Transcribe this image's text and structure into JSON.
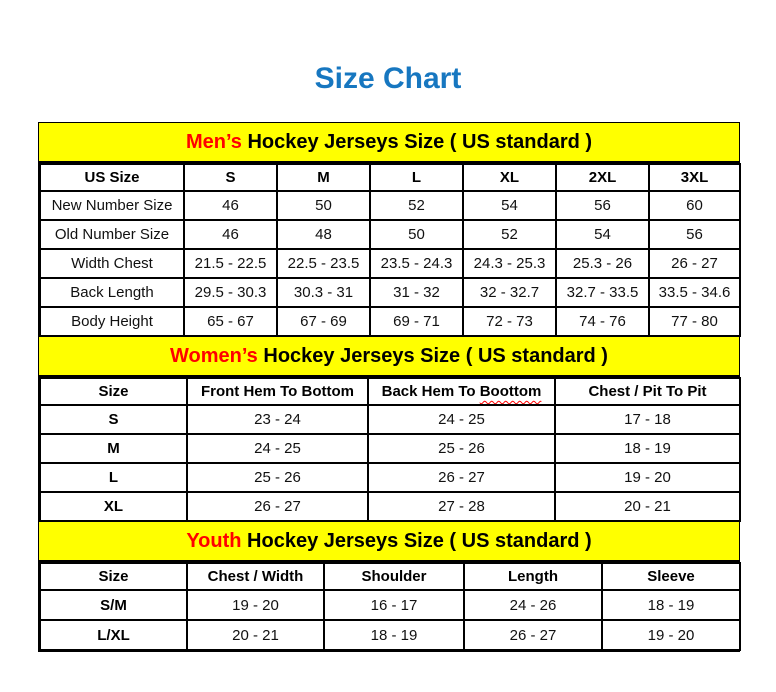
{
  "title": "Size Chart",
  "colors": {
    "title_blue": "#1777c0",
    "section_red": "#ff0000",
    "banner_yellow": "#ffff00",
    "border_black": "#000000"
  },
  "sections": [
    {
      "title_prefix": "Men’s",
      "title_rest": " Hockey Jerseys Size ( US standard )",
      "bold_first_col": false,
      "columns": [
        "US Size",
        "S",
        "M",
        "L",
        "XL",
        "2XL",
        "3XL"
      ],
      "rows": [
        [
          "New Number Size",
          "46",
          "50",
          "52",
          "54",
          "56",
          "60"
        ],
        [
          "Old Number Size",
          "46",
          "48",
          "50",
          "52",
          "54",
          "56"
        ],
        [
          "Width Chest",
          "21.5 - 22.5",
          "22.5 - 23.5",
          "23.5 - 24.3",
          "24.3 - 25.3",
          "25.3 - 26",
          "26 - 27"
        ],
        [
          "Back Length",
          "29.5 - 30.3",
          "30.3 - 31",
          "31 - 32",
          "32 - 32.7",
          "32.7 - 33.5",
          "33.5 - 34.6"
        ],
        [
          "Body Height",
          "65 - 67",
          "67 - 69",
          "69 - 71",
          "72 - 73",
          "74 - 76",
          "77 - 80"
        ]
      ]
    },
    {
      "title_prefix": "Women’s",
      "title_rest": " Hockey Jerseys Size ( US standard )",
      "bold_first_col": true,
      "columns": [
        "Size",
        "Front Hem To Bottom",
        {
          "pre": "Back Hem To ",
          "word": "Boottom"
        },
        "Chest / Pit To Pit"
      ],
      "rows": [
        [
          "S",
          "23 - 24",
          "24 - 25",
          "17 - 18"
        ],
        [
          "M",
          "24 - 25",
          "25 - 26",
          "18 - 19"
        ],
        [
          "L",
          "25 - 26",
          "26 - 27",
          "19 - 20"
        ],
        [
          "XL",
          "26 - 27",
          "27 - 28",
          "20 - 21"
        ]
      ]
    },
    {
      "title_prefix": "Youth",
      "title_rest": " Hockey Jerseys Size ( US standard )",
      "bold_first_col": true,
      "columns": [
        "Size",
        "Chest / Width",
        "Shoulder",
        "Length",
        "Sleeve"
      ],
      "rows": [
        [
          "S/M",
          "19 - 20",
          "16 - 17",
          "24 - 26",
          "18 - 19"
        ],
        [
          "L/XL",
          "20 - 21",
          "18 - 19",
          "26 - 27",
          "19 - 20"
        ]
      ]
    }
  ]
}
